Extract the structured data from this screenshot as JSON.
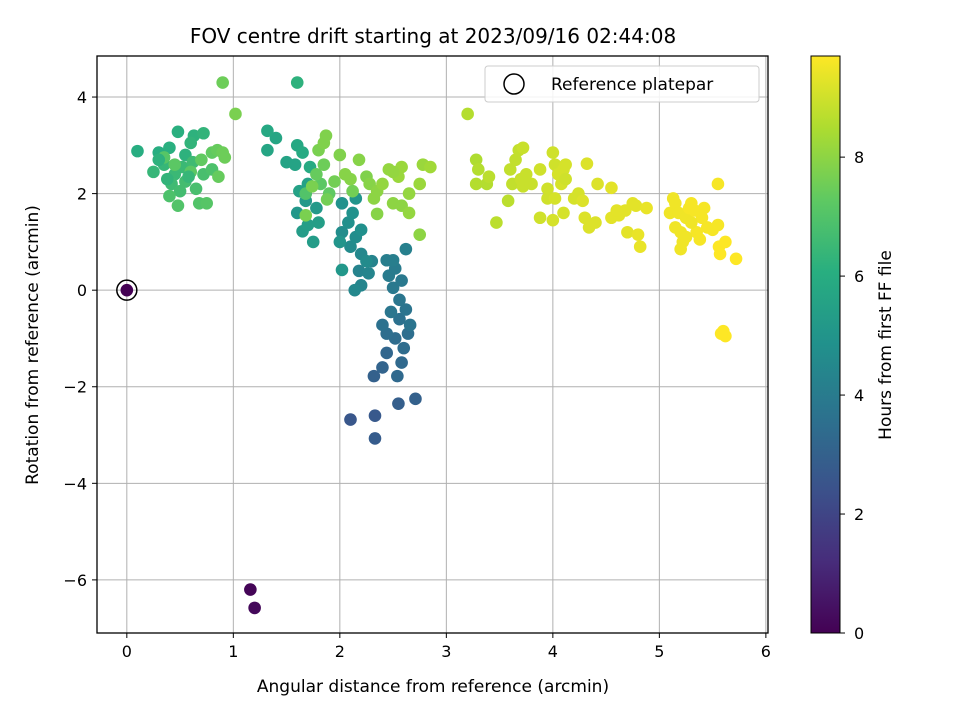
{
  "chart_data": {
    "type": "scatter",
    "title": "FOV centre drift starting at 2023/09/16 02:44:08",
    "xlabel": "Angular distance from reference (arcmin)",
    "ylabel": "Rotation from reference (arcmin)",
    "xlim": [
      -0.28,
      6.02
    ],
    "ylim": [
      -7.1,
      4.85
    ],
    "xticks": [
      0,
      1,
      2,
      3,
      4,
      5,
      6
    ],
    "yticks": [
      -6,
      -4,
      -2,
      0,
      2,
      4
    ],
    "xtick_labels": [
      "0",
      "1",
      "2",
      "3",
      "4",
      "5",
      "6"
    ],
    "ytick_labels": [
      "−6",
      "−4",
      "−2",
      "0",
      "2",
      "4"
    ],
    "grid": true,
    "legend": {
      "placement": "top-right",
      "entries": [
        "Reference platepar"
      ]
    },
    "colorbar": {
      "label": "Hours from first FF file",
      "range": [
        0,
        9.7
      ],
      "ticks": [
        0,
        2,
        4,
        6,
        8
      ],
      "tick_labels": [
        "0",
        "2",
        "4",
        "6",
        "8"
      ],
      "colormap": "viridis"
    },
    "reference_point": {
      "x": 0,
      "y": 0
    },
    "points": [
      {
        "x": 1.16,
        "y": -6.2,
        "h": 0.1
      },
      {
        "x": 1.2,
        "y": -6.58,
        "h": 0.2
      },
      {
        "x": 2.1,
        "y": -2.68,
        "h": 2.6
      },
      {
        "x": 2.33,
        "y": -2.6,
        "h": 2.7
      },
      {
        "x": 2.33,
        "y": -3.07,
        "h": 2.8
      },
      {
        "x": 2.55,
        "y": -2.35,
        "h": 2.9
      },
      {
        "x": 2.71,
        "y": -2.25,
        "h": 3.0
      },
      {
        "x": 2.32,
        "y": -1.78,
        "h": 3.0
      },
      {
        "x": 2.4,
        "y": -1.6,
        "h": 3.1
      },
      {
        "x": 2.44,
        "y": -1.3,
        "h": 3.2
      },
      {
        "x": 2.54,
        "y": -1.78,
        "h": 3.3
      },
      {
        "x": 2.58,
        "y": -1.5,
        "h": 3.3
      },
      {
        "x": 2.6,
        "y": -1.2,
        "h": 3.4
      },
      {
        "x": 2.52,
        "y": -1.0,
        "h": 3.4
      },
      {
        "x": 2.64,
        "y": -0.9,
        "h": 3.5
      },
      {
        "x": 2.44,
        "y": -0.9,
        "h": 3.5
      },
      {
        "x": 2.4,
        "y": -0.72,
        "h": 3.6
      },
      {
        "x": 2.56,
        "y": -0.6,
        "h": 3.6
      },
      {
        "x": 2.62,
        "y": -0.4,
        "h": 3.7
      },
      {
        "x": 2.66,
        "y": -0.72,
        "h": 3.7
      },
      {
        "x": 2.48,
        "y": -0.45,
        "h": 3.8
      },
      {
        "x": 2.56,
        "y": -0.2,
        "h": 3.8
      },
      {
        "x": 2.5,
        "y": 0.05,
        "h": 3.9
      },
      {
        "x": 2.58,
        "y": 0.2,
        "h": 3.9
      },
      {
        "x": 2.46,
        "y": 0.3,
        "h": 4.0
      },
      {
        "x": 2.52,
        "y": 0.45,
        "h": 4.0
      },
      {
        "x": 2.44,
        "y": 0.62,
        "h": 4.1
      },
      {
        "x": 2.5,
        "y": 0.62,
        "h": 4.1
      },
      {
        "x": 2.62,
        "y": 0.85,
        "h": 4.2
      },
      {
        "x": 2.3,
        "y": 0.6,
        "h": 4.3
      },
      {
        "x": 2.18,
        "y": 0.4,
        "h": 4.3
      },
      {
        "x": 2.27,
        "y": 0.35,
        "h": 4.4
      },
      {
        "x": 2.2,
        "y": 0.1,
        "h": 4.4
      },
      {
        "x": 2.14,
        "y": 0.0,
        "h": 4.5
      },
      {
        "x": 2.2,
        "y": 0.75,
        "h": 4.5
      },
      {
        "x": 2.25,
        "y": 0.6,
        "h": 4.6
      },
      {
        "x": 2.1,
        "y": 0.9,
        "h": 4.6
      },
      {
        "x": 2.15,
        "y": 1.1,
        "h": 4.7
      },
      {
        "x": 2.02,
        "y": 1.2,
        "h": 4.7
      },
      {
        "x": 2.08,
        "y": 1.4,
        "h": 4.8
      },
      {
        "x": 2.2,
        "y": 1.25,
        "h": 4.8
      },
      {
        "x": 2.12,
        "y": 1.6,
        "h": 4.9
      },
      {
        "x": 2.02,
        "y": 1.8,
        "h": 4.9
      },
      {
        "x": 2.15,
        "y": 1.9,
        "h": 5.0
      },
      {
        "x": 2.0,
        "y": 1.0,
        "h": 5.0
      },
      {
        "x": 2.02,
        "y": 0.42,
        "h": 5.1
      },
      {
        "x": 1.6,
        "y": 1.6,
        "h": 5.1
      },
      {
        "x": 1.68,
        "y": 1.85,
        "h": 5.2
      },
      {
        "x": 1.78,
        "y": 1.7,
        "h": 5.2
      },
      {
        "x": 1.65,
        "y": 1.22,
        "h": 5.3
      },
      {
        "x": 1.75,
        "y": 1.0,
        "h": 5.3
      },
      {
        "x": 1.8,
        "y": 1.4,
        "h": 5.4
      },
      {
        "x": 1.7,
        "y": 1.35,
        "h": 5.4
      },
      {
        "x": 1.62,
        "y": 2.05,
        "h": 5.5
      },
      {
        "x": 1.7,
        "y": 2.2,
        "h": 5.5
      },
      {
        "x": 1.58,
        "y": 2.6,
        "h": 5.6
      },
      {
        "x": 1.5,
        "y": 2.65,
        "h": 5.6
      },
      {
        "x": 1.32,
        "y": 2.9,
        "h": 5.7
      },
      {
        "x": 1.4,
        "y": 3.15,
        "h": 5.7
      },
      {
        "x": 1.32,
        "y": 3.3,
        "h": 5.8
      },
      {
        "x": 1.6,
        "y": 3.0,
        "h": 5.8
      },
      {
        "x": 1.65,
        "y": 2.85,
        "h": 5.9
      },
      {
        "x": 1.72,
        "y": 2.55,
        "h": 5.9
      },
      {
        "x": 0.1,
        "y": 2.88,
        "h": 6.0
      },
      {
        "x": 0.3,
        "y": 2.85,
        "h": 6.0
      },
      {
        "x": 0.4,
        "y": 2.95,
        "h": 6.1
      },
      {
        "x": 0.48,
        "y": 3.28,
        "h": 6.1
      },
      {
        "x": 0.55,
        "y": 2.8,
        "h": 6.2
      },
      {
        "x": 0.63,
        "y": 3.2,
        "h": 6.2
      },
      {
        "x": 0.72,
        "y": 3.25,
        "h": 6.3
      },
      {
        "x": 0.6,
        "y": 3.05,
        "h": 6.3
      },
      {
        "x": 0.25,
        "y": 2.45,
        "h": 6.4
      },
      {
        "x": 0.35,
        "y": 2.6,
        "h": 6.4
      },
      {
        "x": 0.45,
        "y": 2.4,
        "h": 6.5
      },
      {
        "x": 0.52,
        "y": 2.55,
        "h": 6.5
      },
      {
        "x": 0.62,
        "y": 2.65,
        "h": 6.6
      },
      {
        "x": 0.42,
        "y": 2.2,
        "h": 6.6
      },
      {
        "x": 0.5,
        "y": 2.05,
        "h": 6.7
      },
      {
        "x": 0.55,
        "y": 2.25,
        "h": 6.7
      },
      {
        "x": 0.65,
        "y": 2.1,
        "h": 6.8
      },
      {
        "x": 0.72,
        "y": 2.4,
        "h": 6.8
      },
      {
        "x": 0.8,
        "y": 2.5,
        "h": 6.9
      },
      {
        "x": 0.4,
        "y": 1.95,
        "h": 6.9
      },
      {
        "x": 0.48,
        "y": 1.75,
        "h": 7.0
      },
      {
        "x": 0.68,
        "y": 1.8,
        "h": 7.0
      },
      {
        "x": 0.75,
        "y": 1.8,
        "h": 7.1
      },
      {
        "x": 0.35,
        "y": 2.75,
        "h": 7.1
      },
      {
        "x": 0.45,
        "y": 2.6,
        "h": 7.2
      },
      {
        "x": 0.6,
        "y": 2.45,
        "h": 7.2
      },
      {
        "x": 0.7,
        "y": 2.7,
        "h": 7.3
      },
      {
        "x": 0.8,
        "y": 2.85,
        "h": 7.3
      },
      {
        "x": 0.86,
        "y": 2.35,
        "h": 7.4
      },
      {
        "x": 0.85,
        "y": 2.9,
        "h": 7.4
      },
      {
        "x": 0.92,
        "y": 2.75,
        "h": 7.5
      },
      {
        "x": 0.9,
        "y": 2.85,
        "h": 7.5
      },
      {
        "x": 0.3,
        "y": 2.7,
        "h": 6.2
      },
      {
        "x": 0.38,
        "y": 2.3,
        "h": 6.3
      },
      {
        "x": 0.58,
        "y": 2.35,
        "h": 6.4
      },
      {
        "x": 1.68,
        "y": 2.0,
        "h": 7.0
      },
      {
        "x": 1.82,
        "y": 2.2,
        "h": 7.2
      },
      {
        "x": 1.9,
        "y": 2.0,
        "h": 7.3
      },
      {
        "x": 1.78,
        "y": 2.4,
        "h": 7.4
      },
      {
        "x": 1.85,
        "y": 2.6,
        "h": 7.5
      },
      {
        "x": 1.95,
        "y": 2.25,
        "h": 7.6
      },
      {
        "x": 1.88,
        "y": 1.88,
        "h": 7.6
      },
      {
        "x": 1.74,
        "y": 2.15,
        "h": 7.7
      },
      {
        "x": 1.8,
        "y": 2.9,
        "h": 7.7
      },
      {
        "x": 1.85,
        "y": 3.05,
        "h": 7.8
      },
      {
        "x": 1.87,
        "y": 3.2,
        "h": 7.8
      },
      {
        "x": 1.68,
        "y": 1.55,
        "h": 7.7
      },
      {
        "x": 2.0,
        "y": 2.8,
        "h": 7.8
      },
      {
        "x": 2.05,
        "y": 2.4,
        "h": 7.9
      },
      {
        "x": 2.1,
        "y": 2.3,
        "h": 7.9
      },
      {
        "x": 2.12,
        "y": 2.05,
        "h": 7.6
      },
      {
        "x": 2.25,
        "y": 2.35,
        "h": 7.8
      },
      {
        "x": 2.28,
        "y": 2.2,
        "h": 7.9
      },
      {
        "x": 2.32,
        "y": 1.9,
        "h": 8.0
      },
      {
        "x": 2.35,
        "y": 2.05,
        "h": 8.0
      },
      {
        "x": 2.4,
        "y": 2.2,
        "h": 8.1
      },
      {
        "x": 2.46,
        "y": 2.5,
        "h": 8.1
      },
      {
        "x": 2.55,
        "y": 2.35,
        "h": 8.2
      },
      {
        "x": 2.58,
        "y": 2.55,
        "h": 8.2
      },
      {
        "x": 2.35,
        "y": 1.58,
        "h": 7.9
      },
      {
        "x": 2.5,
        "y": 1.8,
        "h": 8.0
      },
      {
        "x": 2.58,
        "y": 1.75,
        "h": 8.0
      },
      {
        "x": 2.65,
        "y": 1.6,
        "h": 8.1
      },
      {
        "x": 2.65,
        "y": 2.0,
        "h": 8.1
      },
      {
        "x": 2.75,
        "y": 2.2,
        "h": 8.2
      },
      {
        "x": 2.78,
        "y": 2.6,
        "h": 8.2
      },
      {
        "x": 2.85,
        "y": 2.55,
        "h": 8.3
      },
      {
        "x": 2.75,
        "y": 1.15,
        "h": 8.0
      },
      {
        "x": 2.18,
        "y": 2.7,
        "h": 7.9
      },
      {
        "x": 2.5,
        "y": 2.45,
        "h": 8.1
      },
      {
        "x": 0.9,
        "y": 4.3,
        "h": 7.5
      },
      {
        "x": 1.02,
        "y": 3.65,
        "h": 7.7
      },
      {
        "x": 1.6,
        "y": 4.3,
        "h": 6.2
      },
      {
        "x": 3.2,
        "y": 3.65,
        "h": 8.6
      },
      {
        "x": 3.28,
        "y": 2.7,
        "h": 8.5
      },
      {
        "x": 3.3,
        "y": 2.5,
        "h": 8.6
      },
      {
        "x": 3.28,
        "y": 2.2,
        "h": 8.6
      },
      {
        "x": 3.38,
        "y": 2.2,
        "h": 8.6
      },
      {
        "x": 3.4,
        "y": 2.35,
        "h": 8.7
      },
      {
        "x": 3.47,
        "y": 1.4,
        "h": 8.7
      },
      {
        "x": 3.58,
        "y": 1.85,
        "h": 8.7
      },
      {
        "x": 3.62,
        "y": 2.2,
        "h": 8.8
      },
      {
        "x": 3.6,
        "y": 2.5,
        "h": 8.8
      },
      {
        "x": 3.65,
        "y": 2.7,
        "h": 8.8
      },
      {
        "x": 3.68,
        "y": 2.9,
        "h": 8.8
      },
      {
        "x": 3.72,
        "y": 2.95,
        "h": 8.9
      },
      {
        "x": 3.75,
        "y": 2.4,
        "h": 8.9
      },
      {
        "x": 3.8,
        "y": 2.2,
        "h": 8.9
      },
      {
        "x": 3.72,
        "y": 2.15,
        "h": 8.9
      },
      {
        "x": 3.7,
        "y": 2.3,
        "h": 8.9
      },
      {
        "x": 3.88,
        "y": 1.5,
        "h": 9.0
      },
      {
        "x": 3.88,
        "y": 2.5,
        "h": 9.0
      },
      {
        "x": 3.95,
        "y": 1.9,
        "h": 9.0
      },
      {
        "x": 4.0,
        "y": 2.85,
        "h": 9.0
      },
      {
        "x": 4.02,
        "y": 2.6,
        "h": 9.0
      },
      {
        "x": 4.05,
        "y": 2.4,
        "h": 9.1
      },
      {
        "x": 4.08,
        "y": 2.2,
        "h": 9.1
      },
      {
        "x": 4.1,
        "y": 2.5,
        "h": 9.1
      },
      {
        "x": 4.12,
        "y": 2.6,
        "h": 9.1
      },
      {
        "x": 4.0,
        "y": 1.45,
        "h": 9.1
      },
      {
        "x": 4.1,
        "y": 1.6,
        "h": 9.1
      },
      {
        "x": 4.2,
        "y": 1.9,
        "h": 9.1
      },
      {
        "x": 4.24,
        "y": 2.0,
        "h": 9.1
      },
      {
        "x": 4.28,
        "y": 1.85,
        "h": 9.2
      },
      {
        "x": 4.3,
        "y": 1.5,
        "h": 9.2
      },
      {
        "x": 4.32,
        "y": 2.62,
        "h": 9.2
      },
      {
        "x": 4.34,
        "y": 1.3,
        "h": 9.2
      },
      {
        "x": 4.4,
        "y": 1.4,
        "h": 9.2
      },
      {
        "x": 4.42,
        "y": 2.2,
        "h": 9.2
      },
      {
        "x": 4.55,
        "y": 2.12,
        "h": 9.3
      },
      {
        "x": 4.55,
        "y": 1.5,
        "h": 9.3
      },
      {
        "x": 4.62,
        "y": 1.55,
        "h": 9.3
      },
      {
        "x": 4.68,
        "y": 1.65,
        "h": 9.3
      },
      {
        "x": 4.7,
        "y": 1.2,
        "h": 9.3
      },
      {
        "x": 4.75,
        "y": 1.8,
        "h": 9.3
      },
      {
        "x": 4.78,
        "y": 1.75,
        "h": 9.3
      },
      {
        "x": 4.8,
        "y": 1.15,
        "h": 9.4
      },
      {
        "x": 4.82,
        "y": 0.9,
        "h": 9.4
      },
      {
        "x": 4.88,
        "y": 1.7,
        "h": 9.4
      },
      {
        "x": 4.6,
        "y": 1.65,
        "h": 9.3
      },
      {
        "x": 4.02,
        "y": 1.9,
        "h": 9.1
      },
      {
        "x": 4.12,
        "y": 2.3,
        "h": 9.0
      },
      {
        "x": 3.95,
        "y": 2.1,
        "h": 9.0
      },
      {
        "x": 5.1,
        "y": 1.6,
        "h": 9.5
      },
      {
        "x": 5.13,
        "y": 1.9,
        "h": 9.5
      },
      {
        "x": 5.15,
        "y": 1.3,
        "h": 9.5
      },
      {
        "x": 5.15,
        "y": 1.8,
        "h": 9.5
      },
      {
        "x": 5.18,
        "y": 1.6,
        "h": 9.5
      },
      {
        "x": 5.2,
        "y": 1.2,
        "h": 9.5
      },
      {
        "x": 5.2,
        "y": 0.85,
        "h": 9.5
      },
      {
        "x": 5.22,
        "y": 1.0,
        "h": 9.5
      },
      {
        "x": 5.25,
        "y": 1.5,
        "h": 9.5
      },
      {
        "x": 5.28,
        "y": 1.7,
        "h": 9.6
      },
      {
        "x": 5.3,
        "y": 1.8,
        "h": 9.6
      },
      {
        "x": 5.33,
        "y": 1.65,
        "h": 9.6
      },
      {
        "x": 5.35,
        "y": 1.2,
        "h": 9.6
      },
      {
        "x": 5.38,
        "y": 1.05,
        "h": 9.6
      },
      {
        "x": 5.4,
        "y": 1.5,
        "h": 9.6
      },
      {
        "x": 5.45,
        "y": 1.3,
        "h": 9.6
      },
      {
        "x": 5.5,
        "y": 1.25,
        "h": 9.6
      },
      {
        "x": 5.55,
        "y": 1.35,
        "h": 9.6
      },
      {
        "x": 5.55,
        "y": 2.2,
        "h": 9.6
      },
      {
        "x": 5.56,
        "y": 0.9,
        "h": 9.7
      },
      {
        "x": 5.57,
        "y": 0.75,
        "h": 9.7
      },
      {
        "x": 5.62,
        "y": 1.0,
        "h": 9.7
      },
      {
        "x": 5.72,
        "y": 0.65,
        "h": 9.7
      },
      {
        "x": 5.6,
        "y": -0.85,
        "h": 9.7
      },
      {
        "x": 5.62,
        "y": -0.95,
        "h": 9.7
      },
      {
        "x": 5.58,
        "y": -0.9,
        "h": 9.7
      },
      {
        "x": 5.3,
        "y": 1.4,
        "h": 9.5
      },
      {
        "x": 5.25,
        "y": 1.1,
        "h": 9.5
      },
      {
        "x": 5.42,
        "y": 1.7,
        "h": 9.6
      },
      {
        "x": 0.0,
        "y": 0.0,
        "h": 0.0
      }
    ]
  }
}
